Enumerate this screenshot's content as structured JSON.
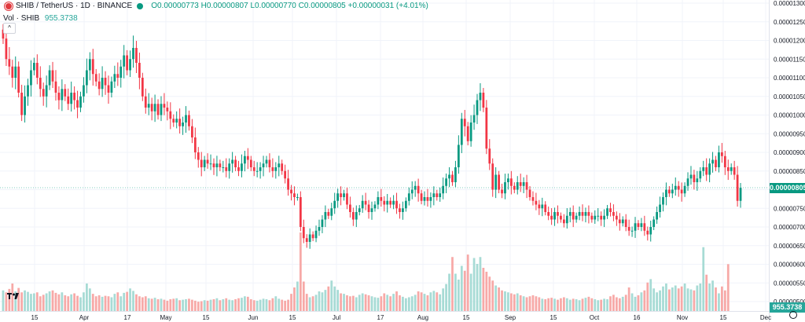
{
  "legend": {
    "symbol": "SHIB / TetherUS · 1D · BINANCE",
    "o": "O0.00000773",
    "h": "H0.00000807",
    "l": "L0.00000770",
    "c": "C0.00000805",
    "chg": "+0.00000031 (+4.01%)"
  },
  "vol_legend": {
    "label": "Vol · SHIB",
    "value": "955.3738"
  },
  "price_tag": "0.00000805",
  "vol_tag": "955.3738",
  "colors": {
    "up": "#089981",
    "down": "#f23645",
    "vol_up": "#a7dbd5",
    "vol_down": "#f7a9a7"
  },
  "chart_data": {
    "type": "candlestick",
    "price_axis_ticks": [
      "0.00001300",
      "0.00001250",
      "0.00001200",
      "0.00001150",
      "0.00001100",
      "0.00001050",
      "0.00001000",
      "0.00000950",
      "0.00000900",
      "0.00000850",
      "0.00000800",
      "0.00000750",
      "0.00000700",
      "0.00000650",
      "0.00000600",
      "0.00000550",
      "0.00000500"
    ],
    "time_axis_ticks": [
      "15",
      "Apr",
      "17",
      "May",
      "15",
      "Jun",
      "15",
      "Jul",
      "17",
      "Aug",
      "15",
      "Sep",
      "15",
      "Oct",
      "16",
      "Nov",
      "15",
      "Dec"
    ],
    "ylim": [
      5e-06,
      1.3e-05
    ],
    "last_price": 8.05e-06,
    "volume_last": 955.3738,
    "closes": [
      1.205e-05,
      1.15e-05,
      1.13e-05,
      1.1e-05,
      1.13e-05,
      1.06e-05,
      1e-05,
      1.05e-05,
      1.08e-05,
      1.12e-05,
      1.14e-05,
      1.1e-05,
      1.07e-05,
      1.05e-05,
      1.08e-05,
      1.12e-05,
      1.09e-05,
      1.06e-05,
      1.04e-05,
      1.07e-05,
      1.05e-05,
      1.03e-05,
      1.06e-05,
      1.04e-05,
      1.02e-05,
      1.05e-05,
      1.08e-05,
      1.12e-05,
      1.15e-05,
      1.11e-05,
      1.09e-05,
      1.07e-05,
      1.1e-05,
      1.08e-05,
      1.06e-05,
      1.09e-05,
      1.11e-05,
      1.1e-05,
      1.13e-05,
      1.16e-05,
      1.12e-05,
      1.15e-05,
      1.18e-05,
      1.14e-05,
      1.1e-05,
      1.05e-05,
      1.02e-05,
      1.03e-05,
      1.01e-05,
      1.03e-05,
      1e-05,
      1.03e-05,
      1.02e-05,
      1.01e-05,
      9.9e-06,
      9.8e-06,
      9.9e-06,
      9.7e-06,
      9.8e-06,
      1e-05,
      9.7e-06,
      9.4e-06,
      9e-06,
      8.8e-06,
      8.6e-06,
      8.8e-06,
      8.7e-06,
      8.7e-06,
      8.6e-06,
      8.7e-06,
      8.6e-06,
      8.6e-06,
      8.5e-06,
      8.7e-06,
      8.8e-06,
      8.6e-06,
      8.5e-06,
      8.7e-06,
      8.9e-06,
      8.8e-06,
      8.6e-06,
      8.5e-06,
      8.5e-06,
      8.6e-06,
      8.7e-06,
      8.8e-06,
      8.6e-06,
      8.5e-06,
      8.6e-06,
      8.7e-06,
      8.5e-06,
      8.3e-06,
      8e-06,
      7.9e-06,
      7.8e-06,
      7.8e-06,
      7e-06,
      6.7e-06,
      6.6e-06,
      6.8e-06,
      6.7e-06,
      6.9e-06,
      7e-06,
      7.2e-06,
      7.4e-06,
      7.3e-06,
      7.5e-06,
      7.7e-06,
      7.9e-06,
      7.8e-06,
      7.9e-06,
      7.6e-06,
      7.4e-06,
      7.2e-06,
      7.4e-06,
      7.5e-06,
      7.7e-06,
      7.6e-06,
      7.4e-06,
      7.5e-06,
      7.6e-06,
      7.8e-06,
      7.7e-06,
      7.6e-06,
      7.7e-06,
      7.6e-06,
      7.7e-06,
      7.5e-06,
      7.4e-06,
      7.5e-06,
      7.7e-06,
      7.9e-06,
      8e-06,
      8.1e-06,
      7.9e-06,
      7.7e-06,
      7.8e-06,
      7.7e-06,
      7.8e-06,
      7.9e-06,
      7.8e-06,
      7.9e-06,
      8.1e-06,
      8.3e-06,
      8.4e-06,
      8.2e-06,
      8.6e-06,
      9.2e-06,
      9.9e-06,
      9.7e-06,
      9.3e-06,
      9.8e-06,
      1e-05,
      1.04e-05,
      1.06e-05,
      1.02e-05,
      9.1e-06,
      8.7e-06,
      8e-06,
      8.4e-06,
      8e-06,
      7.9e-06,
      8.2e-06,
      8.3e-06,
      8.1e-06,
      8e-06,
      8.2e-06,
      8.1e-06,
      8.2e-06,
      8e-06,
      7.8e-06,
      7.7e-06,
      7.6e-06,
      7.5e-06,
      7.6e-06,
      7.4e-06,
      7.3e-06,
      7.2e-06,
      7.4e-06,
      7.3e-06,
      7.2e-06,
      7.1e-06,
      7.3e-06,
      7.4e-06,
      7.2e-06,
      7.3e-06,
      7.4e-06,
      7.3e-06,
      7.4e-06,
      7.3e-06,
      7.2e-06,
      7.3e-06,
      7.3e-06,
      7.2e-06,
      7.3e-06,
      7.5e-06,
      7.4e-06,
      7.3e-06,
      7.2e-06,
      7.1e-06,
      7.2e-06,
      7e-06,
      6.9e-06,
      6.9e-06,
      7.1e-06,
      7e-06,
      7.1e-06,
      6.9e-06,
      6.8e-06,
      7e-06,
      7.2e-06,
      7.4e-06,
      7.6e-06,
      7.8e-06,
      8e-06,
      7.9e-06,
      8e-06,
      8.1e-06,
      8e-06,
      7.9e-06,
      8.1e-06,
      8.3e-06,
      8.4e-06,
      8.2e-06,
      8.3e-06,
      8.5e-06,
      8.6e-06,
      8.4e-06,
      8.7e-06,
      8.8e-06,
      8.6e-06,
      9e-06,
      8.9e-06,
      8.6e-06,
      8.5e-06,
      8.6e-06,
      8.4e-06,
      7.7e-06,
      8.05e-06
    ],
    "volumes": [
      420,
      380,
      450,
      560,
      400,
      470,
      380,
      420,
      390,
      350,
      360,
      380,
      300,
      330,
      360,
      400,
      420,
      370,
      340,
      380,
      320,
      300,
      340,
      360,
      310,
      280,
      380,
      560,
      460,
      350,
      300,
      320,
      290,
      310,
      300,
      280,
      350,
      380,
      300,
      370,
      390,
      460,
      410,
      340,
      300,
      280,
      300,
      260,
      250,
      270,
      240,
      250,
      230,
      210,
      240,
      250,
      260,
      220,
      230,
      240,
      250,
      230,
      210,
      190,
      200,
      220,
      210,
      230,
      240,
      260,
      220,
      240,
      260,
      230,
      220,
      240,
      260,
      270,
      300,
      290,
      240,
      220,
      210,
      230,
      250,
      240,
      220,
      260,
      300,
      250,
      230,
      210,
      230,
      350,
      480,
      600,
      1600,
      600,
      350,
      280,
      300,
      330,
      400,
      380,
      430,
      500,
      620,
      500,
      430,
      360,
      350,
      320,
      300,
      310,
      280,
      330,
      360,
      340,
      320,
      300,
      280,
      270,
      300,
      360,
      330,
      300,
      350,
      400,
      320,
      290,
      260,
      280,
      300,
      330,
      400,
      380,
      350,
      320,
      380,
      410,
      380,
      340,
      460,
      550,
      760,
      1100,
      760,
      640,
      920,
      820,
      1150,
      760,
      1080,
      960,
      1100,
      880,
      800,
      700,
      620,
      520,
      480,
      420,
      400,
      380,
      360,
      340,
      360,
      320,
      300,
      280,
      300,
      320,
      300,
      280,
      250,
      240,
      260,
      270,
      250,
      230,
      260,
      280,
      260,
      230,
      250,
      240,
      220,
      250,
      270,
      290,
      260,
      240,
      220,
      230,
      250,
      240,
      300,
      330,
      280,
      260,
      290,
      330,
      480,
      360,
      290,
      320,
      380,
      420,
      580,
      650,
      460,
      380,
      420,
      500,
      560,
      440,
      480,
      520,
      460,
      500,
      560,
      460,
      440,
      420,
      520,
      560,
      1300,
      740,
      560,
      620,
      480,
      360,
      500,
      420,
      955
    ]
  }
}
